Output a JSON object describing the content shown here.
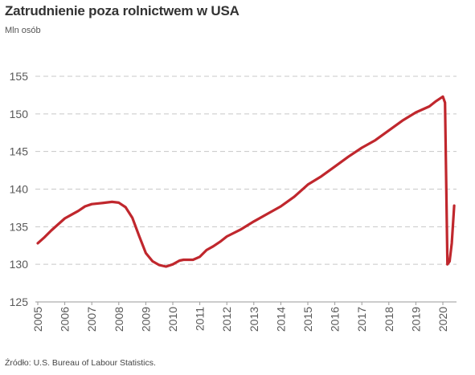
{
  "title": "Zatrudnienie poza rolnictwem w USA",
  "subtitle": "Mln osób",
  "source": "Źródło: U.S. Bureau of Labour Statistics.",
  "colors": {
    "line": "#c0272d",
    "grid": "#c8c8c8",
    "axis": "#9a9a9a"
  },
  "chart_data": {
    "type": "line",
    "title": "Zatrudnienie poza rolnictwem w USA",
    "ylabel": "Mln osób",
    "xlabel": "",
    "ylim": [
      125,
      155
    ],
    "xlim": [
      2005,
      2020.75
    ],
    "y_ticks": [
      125,
      130,
      135,
      140,
      145,
      150,
      155
    ],
    "x_ticks": [
      "2005",
      "2006",
      "2007",
      "2008",
      "2009",
      "2010",
      "2011",
      "2012",
      "2013",
      "2014",
      "2015",
      "2016",
      "2017",
      "2018",
      "2019",
      "2020"
    ],
    "grid": "horizontal dashed",
    "series": [
      {
        "x": [
          2005.0,
          2005.25,
          2005.5,
          2005.75,
          2006.0,
          2006.25,
          2006.5,
          2006.75,
          2007.0,
          2007.25,
          2007.5,
          2007.75,
          2008.0,
          2008.25,
          2008.5,
          2008.75,
          2009.0,
          2009.25,
          2009.5,
          2009.75,
          2010.0,
          2010.25,
          2010.4,
          2010.75,
          2011.0,
          2011.25,
          2011.5,
          2011.75,
          2012.0,
          2012.5,
          2013.0,
          2013.5,
          2014.0,
          2014.5,
          2015.0,
          2015.5,
          2016.0,
          2016.5,
          2017.0,
          2017.5,
          2018.0,
          2018.5,
          2019.0,
          2019.5,
          2019.75,
          2020.0,
          2020.08,
          2020.17,
          2020.25,
          2020.33,
          2020.42
        ],
        "y": [
          132.8,
          133.6,
          134.5,
          135.3,
          136.1,
          136.6,
          137.1,
          137.7,
          138.0,
          138.1,
          138.2,
          138.3,
          138.2,
          137.6,
          136.2,
          133.8,
          131.5,
          130.4,
          129.9,
          129.7,
          130.0,
          130.5,
          130.6,
          130.6,
          131.0,
          131.9,
          132.4,
          133.0,
          133.7,
          134.6,
          135.7,
          136.7,
          137.7,
          139.0,
          140.6,
          141.7,
          143.0,
          144.3,
          145.5,
          146.5,
          147.8,
          149.1,
          150.2,
          151.0,
          151.7,
          152.3,
          151.5,
          130.0,
          130.4,
          132.8,
          137.8
        ]
      }
    ]
  }
}
